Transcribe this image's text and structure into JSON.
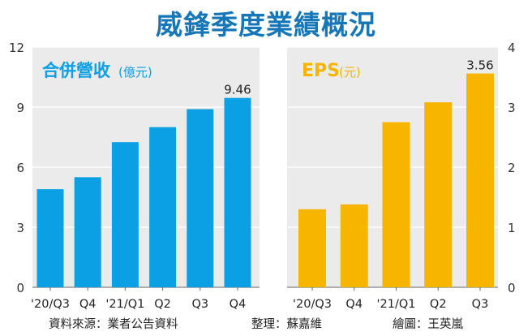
{
  "title": "威鋒季度業績概況",
  "colors": {
    "panel_bg": "#ebebeb",
    "revenue_bar": "#0aa0e3",
    "eps_bar": "#f7b500",
    "title": "#1577b8",
    "axis_text": "#333333"
  },
  "chart_data": [
    {
      "type": "bar",
      "title": "合併營收",
      "unit_label": "(億元)",
      "categories": [
        "'20/Q3",
        "Q4",
        "'21/Q1",
        "Q2",
        "Q3",
        "Q4"
      ],
      "values": [
        4.9,
        5.5,
        7.25,
        8.0,
        8.9,
        9.46
      ],
      "value_label": "9.46",
      "value_label_index": 5,
      "yticks": [
        0,
        3,
        6,
        9,
        12
      ],
      "ylim": [
        0,
        12
      ],
      "xlabel": "",
      "ylabel": "",
      "legend": "none"
    },
    {
      "type": "bar",
      "title": "EPS",
      "unit_label": "(元)",
      "categories": [
        "'20/Q3",
        "Q4",
        "'21/Q1",
        "Q2",
        "Q3"
      ],
      "values": [
        1.3,
        1.38,
        2.75,
        3.08,
        3.56
      ],
      "value_label": "3.56",
      "value_label_index": 4,
      "yticks": [
        0,
        1,
        2,
        3,
        4
      ],
      "ylim": [
        0,
        4
      ],
      "xlabel": "",
      "ylabel": "",
      "legend": "none"
    }
  ],
  "footer": {
    "source": "資料來源：業者公告資料",
    "editor": "整理：蘇嘉維",
    "graphic": "繪圖：王英嵐"
  }
}
